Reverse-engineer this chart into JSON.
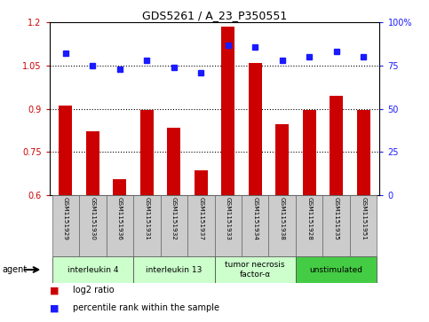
{
  "title": "GDS5261 / A_23_P350551",
  "samples": [
    "GSM1151929",
    "GSM1151930",
    "GSM1151936",
    "GSM1151931",
    "GSM1151932",
    "GSM1151937",
    "GSM1151933",
    "GSM1151934",
    "GSM1151938",
    "GSM1151928",
    "GSM1151935",
    "GSM1151951"
  ],
  "log2_ratio": [
    0.91,
    0.82,
    0.655,
    0.895,
    0.835,
    0.685,
    1.185,
    1.06,
    0.845,
    0.895,
    0.945,
    0.895
  ],
  "percentile_rank": [
    82,
    75,
    73,
    78,
    74,
    71,
    87,
    86,
    78,
    80,
    83,
    80
  ],
  "bar_color": "#cc0000",
  "dot_color": "#1a1aff",
  "ylim_left": [
    0.6,
    1.2
  ],
  "ylim_right": [
    0,
    100
  ],
  "yticks_left": [
    0.6,
    0.75,
    0.9,
    1.05,
    1.2
  ],
  "ytick_labels_left": [
    "0.6",
    "0.75",
    "0.9",
    "1.05",
    "1.2"
  ],
  "yticks_right": [
    0,
    25,
    50,
    75,
    100
  ],
  "ytick_labels_right": [
    "0",
    "25",
    "50",
    "75",
    "100%"
  ],
  "hlines": [
    0.75,
    0.9,
    1.05
  ],
  "groups": [
    {
      "label": "interleukin 4",
      "indices": [
        0,
        1,
        2
      ],
      "color": "#ccffcc"
    },
    {
      "label": "interleukin 13",
      "indices": [
        3,
        4,
        5
      ],
      "color": "#ccffcc"
    },
    {
      "label": "tumor necrosis\nfactor-α",
      "indices": [
        6,
        7,
        8
      ],
      "color": "#ccffcc"
    },
    {
      "label": "unstimulated",
      "indices": [
        9,
        10,
        11
      ],
      "color": "#44cc44"
    }
  ],
  "bar_width": 0.5,
  "sample_label_color": "#cccccc",
  "legend_red_label": "log2 ratio",
  "legend_blue_label": "percentile rank within the sample",
  "agent_label": "agent"
}
